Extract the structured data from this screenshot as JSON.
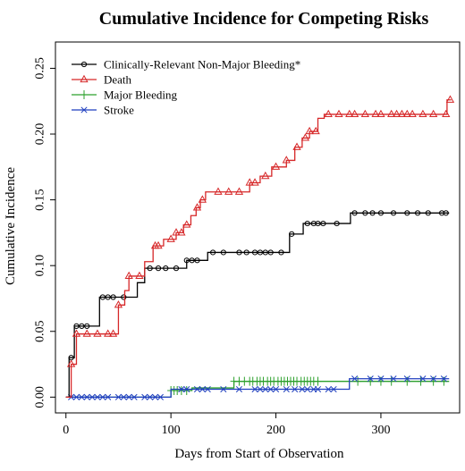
{
  "chart_data": {
    "type": "line",
    "step": true,
    "title": "Cumulative Incidence for Competing Risks",
    "xlabel": "Days from Start of Observation",
    "ylabel": "Cumulative Incidence",
    "xlim": [
      -10,
      375
    ],
    "ylim": [
      -0.012,
      0.27
    ],
    "x_ticks": [
      0,
      100,
      200,
      300
    ],
    "y_ticks": [
      0.0,
      0.05,
      0.1,
      0.15,
      0.2,
      0.25
    ],
    "x_tick_labels": [
      "0",
      "100",
      "200",
      "300"
    ],
    "y_tick_labels": [
      "0.00",
      "0.05",
      "0.10",
      "0.15",
      "0.20",
      "0.25"
    ],
    "grid": false,
    "legend_position": "top-left",
    "series": [
      {
        "name": "Clinically-Relevant Non-Major Bleeding*",
        "color": "#000000",
        "marker": "circle",
        "steps": [
          [
            0,
            0
          ],
          [
            3,
            0.03
          ],
          [
            8,
            0.054
          ],
          [
            25,
            0.054
          ],
          [
            32,
            0.076
          ],
          [
            63,
            0.076
          ],
          [
            68,
            0.087
          ],
          [
            75,
            0.098
          ],
          [
            110,
            0.098
          ],
          [
            115,
            0.104
          ],
          [
            130,
            0.104
          ],
          [
            135,
            0.11
          ],
          [
            208,
            0.11
          ],
          [
            213,
            0.124
          ],
          [
            222,
            0.124
          ],
          [
            226,
            0.132
          ],
          [
            266,
            0.132
          ],
          [
            271,
            0.14
          ],
          [
            365,
            0.14
          ]
        ],
        "marker_x": [
          5,
          10,
          15,
          20,
          35,
          40,
          45,
          55,
          80,
          88,
          95,
          105,
          115,
          120,
          125,
          140,
          150,
          165,
          172,
          180,
          185,
          190,
          195,
          205,
          215,
          230,
          236,
          240,
          245,
          258,
          275,
          285,
          292,
          300,
          312,
          325,
          335,
          345,
          358,
          362
        ]
      },
      {
        "name": "Death",
        "color": "#d62728",
        "marker": "triangle",
        "steps": [
          [
            0,
            0
          ],
          [
            5,
            0.025
          ],
          [
            10,
            0.048
          ],
          [
            48,
            0.048
          ],
          [
            50,
            0.07
          ],
          [
            56,
            0.081
          ],
          [
            60,
            0.092
          ],
          [
            75,
            0.103
          ],
          [
            83,
            0.115
          ],
          [
            90,
            0.115
          ],
          [
            93,
            0.12
          ],
          [
            105,
            0.125
          ],
          [
            112,
            0.131
          ],
          [
            119,
            0.138
          ],
          [
            124,
            0.144
          ],
          [
            128,
            0.15
          ],
          [
            133,
            0.156
          ],
          [
            170,
            0.156
          ],
          [
            175,
            0.163
          ],
          [
            185,
            0.168
          ],
          [
            196,
            0.175
          ],
          [
            210,
            0.18
          ],
          [
            218,
            0.19
          ],
          [
            225,
            0.197
          ],
          [
            232,
            0.202
          ],
          [
            240,
            0.212
          ],
          [
            246,
            0.215
          ],
          [
            361,
            0.215
          ],
          [
            363,
            0.226
          ],
          [
            367,
            0.226
          ]
        ],
        "marker_x": [
          5,
          10,
          20,
          30,
          40,
          45,
          50,
          60,
          70,
          85,
          88,
          100,
          105,
          110,
          115,
          125,
          130,
          145,
          155,
          165,
          175,
          180,
          190,
          200,
          210,
          220,
          228,
          232,
          238,
          250,
          260,
          270,
          275,
          285,
          295,
          300,
          310,
          315,
          320,
          325,
          330,
          340,
          350,
          362,
          366
        ]
      },
      {
        "name": "Major Bleeding",
        "color": "#2ca02c",
        "marker": "plus",
        "steps": [
          [
            0,
            0
          ],
          [
            5,
            0.0
          ],
          [
            95,
            0.0
          ],
          [
            100,
            0.005
          ],
          [
            110,
            0.005
          ],
          [
            120,
            0.007
          ],
          [
            155,
            0.007
          ],
          [
            160,
            0.012
          ],
          [
            265,
            0.012
          ],
          [
            270,
            0.012
          ],
          [
            365,
            0.012
          ]
        ],
        "marker_x": [
          100,
          103,
          106,
          110,
          115,
          160,
          165,
          170,
          175,
          178,
          182,
          185,
          188,
          192,
          195,
          198,
          202,
          205,
          208,
          211,
          214,
          217,
          220,
          224,
          227,
          230,
          233,
          236,
          240,
          278,
          290,
          300,
          310,
          325,
          338,
          350,
          360
        ]
      },
      {
        "name": "Stroke",
        "color": "#1f3fbf",
        "marker": "x",
        "steps": [
          [
            0,
            0
          ],
          [
            5,
            0.0
          ],
          [
            96,
            0.0
          ],
          [
            100,
            0.006
          ],
          [
            265,
            0.006
          ],
          [
            270,
            0.014
          ],
          [
            365,
            0.014
          ]
        ],
        "marker_x": [
          5,
          10,
          15,
          20,
          25,
          30,
          35,
          40,
          50,
          55,
          60,
          65,
          75,
          80,
          85,
          90,
          110,
          115,
          125,
          130,
          135,
          150,
          165,
          180,
          185,
          190,
          195,
          200,
          210,
          218,
          225,
          230,
          236,
          240,
          250,
          255,
          275,
          290,
          300,
          312,
          325,
          340,
          350,
          360
        ]
      }
    ]
  }
}
